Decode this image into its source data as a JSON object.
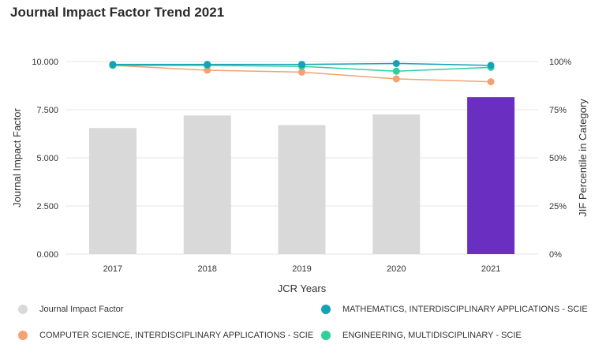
{
  "chart_data": {
    "type": "bar",
    "title": "Journal Impact Factor Trend 2021",
    "xlabel": "JCR Years",
    "ylabel": "Journal Impact Factor",
    "y2label": "JIF Percentile in Category",
    "categories": [
      "2017",
      "2018",
      "2019",
      "2020",
      "2021"
    ],
    "ylim": [
      0,
      10
    ],
    "yticks": [
      "0.000",
      "2.500",
      "5.000",
      "7.500",
      "10.000"
    ],
    "y2lim": [
      0,
      100
    ],
    "y2ticks": [
      "0%",
      "25%",
      "50%",
      "75%",
      "100%"
    ],
    "grid": true,
    "legend_position": "bottom",
    "bars": {
      "name": "Journal Impact Factor",
      "values": [
        6.55,
        7.2,
        6.7,
        7.25,
        8.15
      ],
      "color": "#d9d9d9",
      "highlight_color": "#6a2fc0",
      "highlight_index": 4
    },
    "series": [
      {
        "name": "COMPUTER SCIENCE, INTERDISCIPLINARY APPLICATIONS - SCIE",
        "color": "#f5a272",
        "values": [
          98,
          95.5,
          94.5,
          91,
          89.5
        ]
      },
      {
        "name": "ENGINEERING, MULTIDISCIPLINARY - SCIE",
        "color": "#2fcf9c",
        "values": [
          98,
          98,
          97.5,
          95,
          97
        ]
      },
      {
        "name": "MATHEMATICS, INTERDISCIPLINARY APPLICATIONS - SCIE",
        "color": "#12a3b4",
        "values": [
          98.5,
          98.5,
          98.5,
          99,
          98
        ]
      }
    ]
  },
  "legend": {
    "jif": {
      "label": "Journal Impact Factor",
      "color": "#d9d9d9"
    },
    "math": {
      "label": "MATHEMATICS, INTERDISCIPLINARY APPLICATIONS - SCIE",
      "color": "#12a3b4"
    },
    "cs": {
      "label": "COMPUTER SCIENCE, INTERDISCIPLINARY APPLICATIONS - SCIE",
      "color": "#f5a272"
    },
    "eng": {
      "label": "ENGINEERING, MULTIDISCIPLINARY - SCIE",
      "color": "#2fcf9c"
    }
  }
}
